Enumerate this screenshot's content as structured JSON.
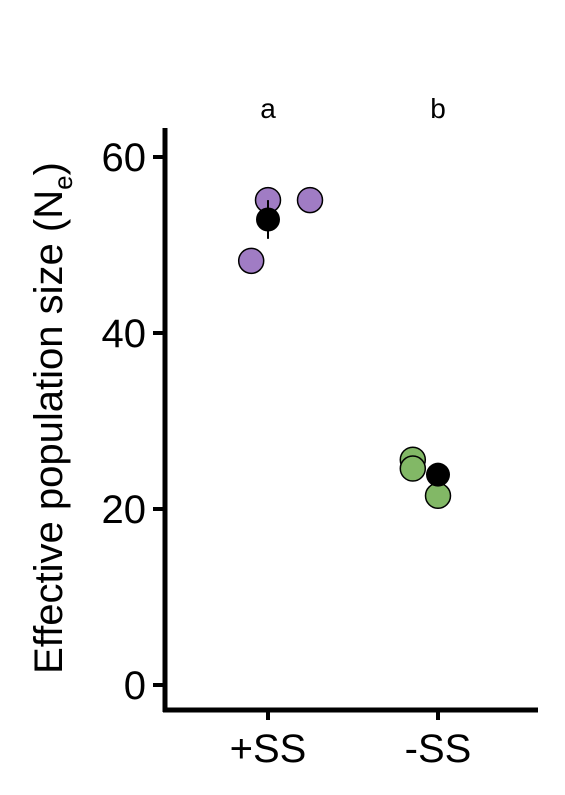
{
  "chart_data": {
    "type": "scatter",
    "ylabel": "Effective population size (N",
    "ylabel_sub": "e",
    "ylabel_close": ")",
    "xlabel": "",
    "ylim": [
      -3,
      63
    ],
    "yticks": [
      0,
      20,
      40,
      60
    ],
    "categories": [
      "+SS",
      "-SS"
    ],
    "significance_letters": [
      "a",
      "b"
    ],
    "colors": {
      "+SS": "#a07cc4",
      "-SS": "#82b866",
      "mean": "#000000"
    },
    "points": [
      {
        "group": "+SS",
        "jitter": 0.0,
        "y": 55.1
      },
      {
        "group": "+SS",
        "jitter": 0.3,
        "y": 55.1
      },
      {
        "group": "+SS",
        "jitter": -0.12,
        "y": 48.2
      },
      {
        "group": "-SS",
        "jitter": -0.18,
        "y": 25.6
      },
      {
        "group": "-SS",
        "jitter": -0.18,
        "y": 24.6
      },
      {
        "group": "-SS",
        "jitter": 0.0,
        "y": 21.5
      }
    ],
    "means": [
      {
        "group": "+SS",
        "y": 52.9,
        "err": 2.2
      },
      {
        "group": "-SS",
        "y": 23.9,
        "err": 1.0
      }
    ]
  }
}
